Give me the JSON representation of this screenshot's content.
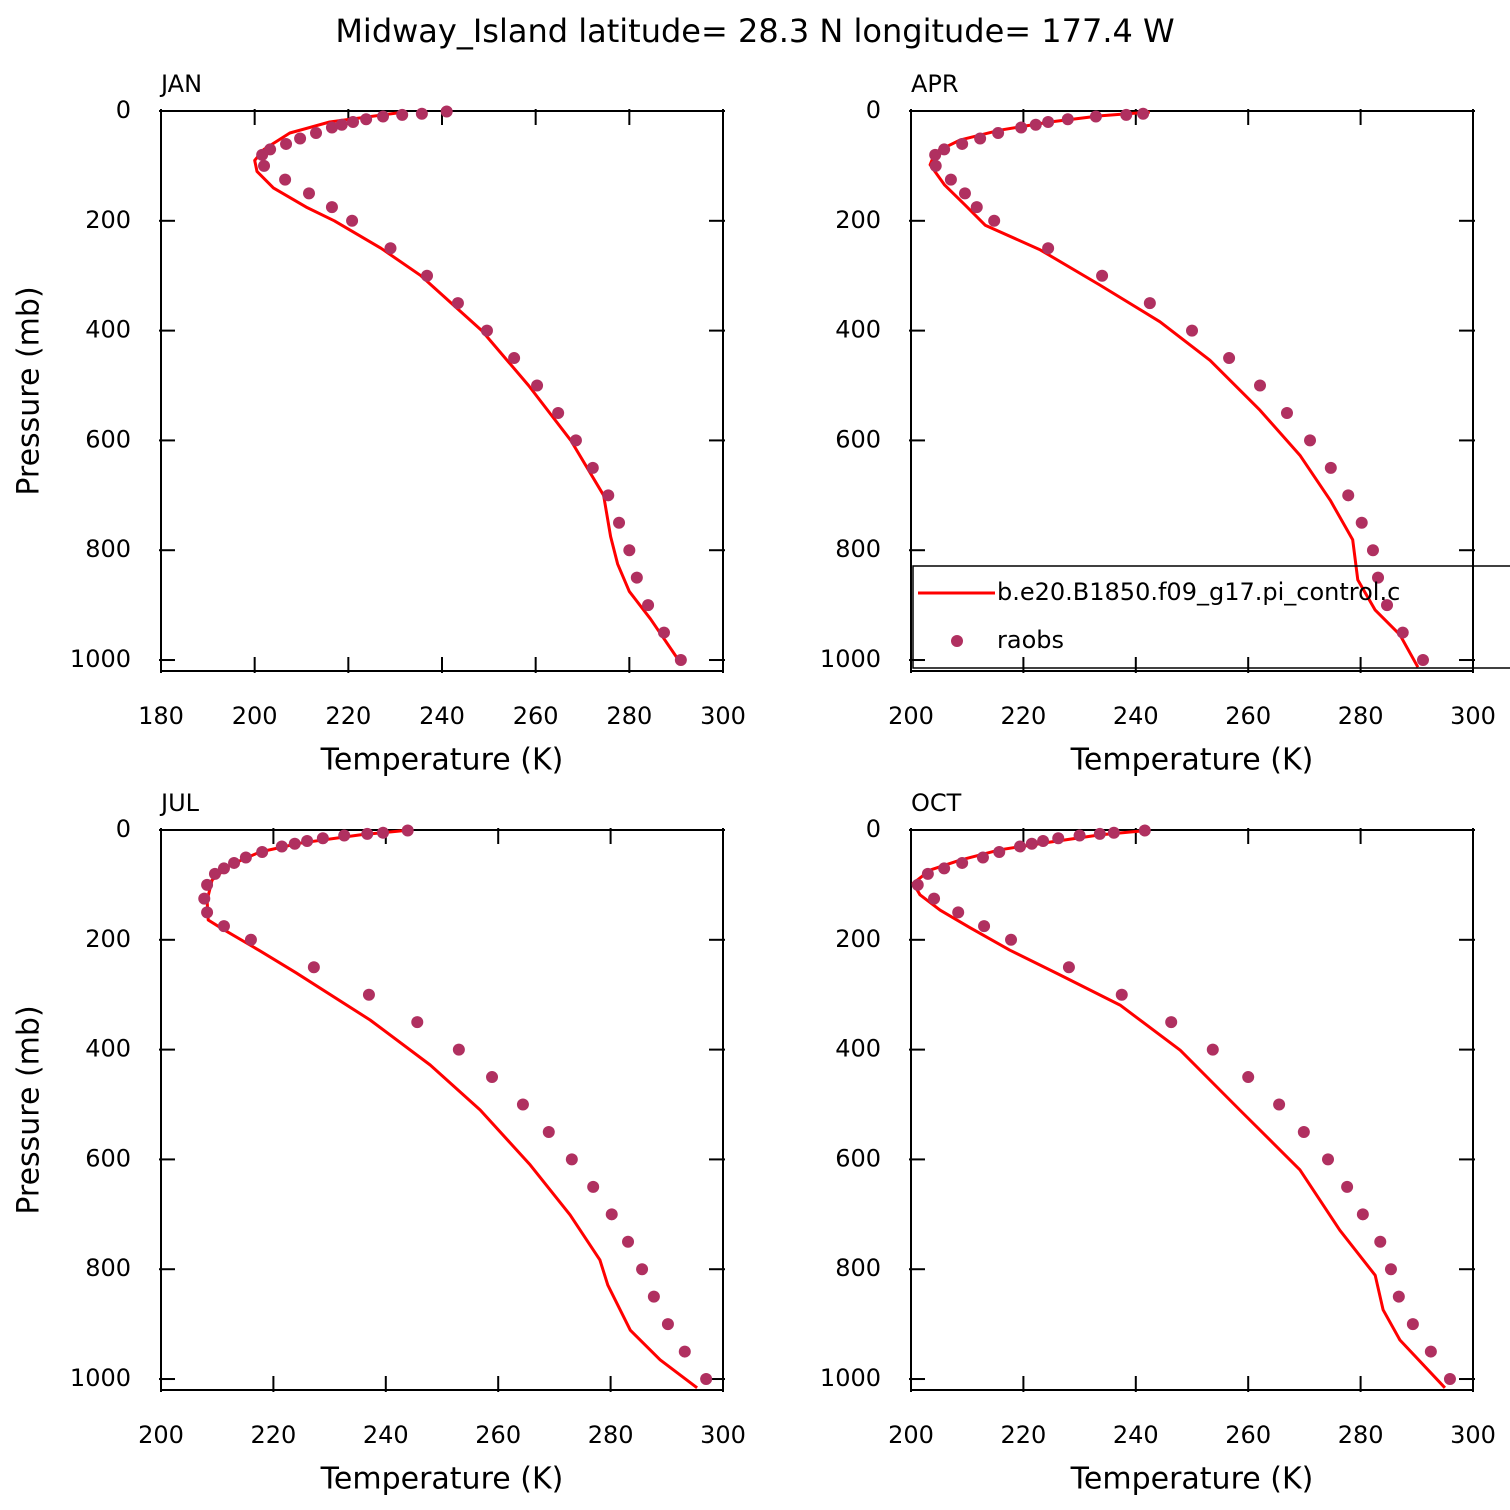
{
  "title": "Midway_Island  latitude= 28.3 N longitude= 177.4 W",
  "chart_data": [
    {
      "type": "line",
      "title": "JAN",
      "xlabel": "Temperature (K)",
      "ylabel": "Pressure (mb)",
      "xlim": [
        180,
        300
      ],
      "xticks": [
        180,
        200,
        220,
        240,
        260,
        280,
        300
      ],
      "ylim": [
        0,
        1020
      ],
      "yticks": [
        0,
        200,
        400,
        600,
        800,
        1000
      ],
      "y_inverted": true,
      "series": [
        {
          "style": "line",
          "color": "#ff0000",
          "x": [
            231,
            216,
            207.5,
            202,
            200,
            200.5,
            204,
            211,
            217,
            227,
            235.5,
            248.5,
            258.5,
            267.5,
            274.5,
            276,
            277.5,
            280,
            284.5,
            290.5
          ],
          "values": [
            3,
            20,
            40,
            70,
            90,
            110,
            140,
            175,
            200,
            250,
            300,
            400,
            500,
            600,
            700,
            775,
            825,
            875,
            925,
            1000
          ]
        },
        {
          "style": "points",
          "color": "#b03060",
          "x": [
            241,
            235.7,
            231.5,
            227.4,
            223.8,
            221,
            218.6,
            216.5,
            213.1,
            209.7,
            206.7,
            203.3,
            201.6,
            202,
            206.5,
            211.6,
            216.5,
            220.8,
            229,
            236.8,
            243.4,
            249.6,
            255.4,
            260.3,
            264.8,
            268.6,
            272.2,
            275.5,
            277.8,
            280,
            281.6,
            284,
            287.4,
            291
          ],
          "values": [
            1,
            5,
            7,
            10,
            15,
            20,
            25,
            30,
            40,
            50,
            60,
            70,
            80,
            100,
            125,
            150,
            175,
            200,
            250,
            300,
            350,
            400,
            450,
            500,
            550,
            600,
            650,
            700,
            750,
            800,
            850,
            900,
            950,
            1000
          ]
        }
      ]
    },
    {
      "type": "line",
      "title": "APR",
      "xlabel": "Temperature (K)",
      "xlim": [
        200,
        300
      ],
      "xticks": [
        200,
        220,
        240,
        260,
        280,
        300
      ],
      "ylim": [
        0,
        1020
      ],
      "yticks": [
        0,
        200,
        400,
        600,
        800,
        1000
      ],
      "y_inverted": true,
      "legend": "lower right",
      "series": [
        {
          "name": "b.e20.B1850.f09_g17.pi_control.c",
          "style": "line",
          "color": "#ff0000",
          "x": [
            242.5,
            233.6,
            224.7,
            215.8,
            208.7,
            204.3,
            203.4,
            206,
            209.6,
            213.2,
            223,
            233.6,
            244.3,
            253.2,
            262.1,
            269.2,
            274.6,
            278.6,
            279.5,
            282.6,
            287,
            290.2
          ],
          "values": [
            2,
            9,
            20,
            35,
            53,
            75,
            98,
            135,
            171,
            208,
            253,
            317,
            384,
            454,
            545,
            627,
            709,
            781,
            854,
            909,
            954,
            1013
          ]
        },
        {
          "name": "raobs",
          "style": "points",
          "color": "#b03060",
          "x": [
            241.3,
            238.3,
            232.9,
            227.9,
            224.4,
            222.2,
            219.6,
            215.5,
            212.3,
            209.1,
            205.9,
            204.3,
            204.4,
            207.1,
            209.6,
            211.7,
            214.8,
            224.4,
            234,
            242.5,
            250,
            256.6,
            262.1,
            266.9,
            271,
            274.7,
            277.8,
            280.2,
            282.2,
            283.1,
            284.7,
            287.5,
            291.1
          ],
          "values": [
            5,
            7,
            10,
            15,
            20,
            25,
            30,
            40,
            50,
            60,
            70,
            80,
            100,
            125,
            150,
            175,
            200,
            250,
            300,
            350,
            400,
            450,
            500,
            550,
            600,
            650,
            700,
            750,
            800,
            850,
            900,
            950,
            1000
          ]
        }
      ]
    },
    {
      "type": "line",
      "title": "JUL",
      "xlabel": "Temperature (K)",
      "ylabel": "Pressure (mb)",
      "xlim": [
        200,
        300
      ],
      "xticks": [
        200,
        220,
        240,
        260,
        280,
        300
      ],
      "ylim": [
        0,
        1020
      ],
      "yticks": [
        0,
        200,
        400,
        600,
        800,
        1000
      ],
      "y_inverted": true,
      "series": [
        {
          "style": "line",
          "color": "#ff0000",
          "x": [
            244.3,
            235.4,
            224.7,
            217.6,
            212.3,
            209.1,
            208.2,
            208.4,
            210.9,
            217.6,
            224,
            237.2,
            247.9,
            256.8,
            265.7,
            272.8,
            278.1,
            279.5,
            283.5,
            288.8,
            295.4
          ],
          "values": [
            0,
            9,
            24,
            40,
            64,
            91,
            128,
            164,
            180,
            220,
            260,
            346,
            428,
            510,
            610,
            701,
            783,
            829,
            911,
            965,
            1016
          ]
        },
        {
          "style": "points",
          "color": "#b03060",
          "x": [
            243.9,
            239.5,
            236.7,
            232.6,
            228.8,
            226,
            223.8,
            221.5,
            218,
            215.1,
            213,
            211.2,
            209.6,
            208.2,
            207.7,
            208.2,
            211.2,
            216,
            227.2,
            237,
            245.6,
            253,
            258.9,
            264.4,
            269,
            273.1,
            276.9,
            280.2,
            283.1,
            285.6,
            287.7,
            290.2,
            293.2,
            297
          ],
          "values": [
            1,
            5,
            7,
            10,
            15,
            20,
            25,
            30,
            40,
            50,
            60,
            70,
            80,
            100,
            125,
            150,
            175,
            200,
            250,
            300,
            350,
            400,
            450,
            500,
            550,
            600,
            650,
            700,
            750,
            800,
            850,
            900,
            950,
            1000
          ]
        }
      ]
    },
    {
      "type": "line",
      "title": "OCT",
      "xlabel": "Temperature (K)",
      "xlim": [
        200,
        300
      ],
      "xticks": [
        200,
        220,
        240,
        260,
        280,
        300
      ],
      "ylim": [
        0,
        1020
      ],
      "yticks": [
        0,
        200,
        400,
        600,
        800,
        1000
      ],
      "y_inverted": true,
      "series": [
        {
          "style": "line",
          "color": "#ff0000",
          "x": [
            240.7,
            233.6,
            224.7,
            215.8,
            208.7,
            203.4,
            200.4,
            201.6,
            205.2,
            210.5,
            217.6,
            226.5,
            237.2,
            247.9,
            258.5,
            269.2,
            276.3,
            282.6,
            284,
            287,
            295
          ],
          "values": [
            2,
            9,
            22,
            36,
            55,
            73,
            97,
            118,
            146,
            178,
            219,
            264,
            319,
            401,
            510,
            619,
            729,
            811,
            874,
            929,
            1016
          ]
        },
        {
          "style": "points",
          "color": "#b03060",
          "x": [
            241.6,
            236.1,
            233.6,
            230,
            226.2,
            223.5,
            221.5,
            219.4,
            215.7,
            212.8,
            209.1,
            205.9,
            203,
            201.2,
            204.1,
            208.4,
            213,
            217.8,
            228.1,
            237.5,
            246.3,
            253.7,
            260,
            265.5,
            269.9,
            274.2,
            277.6,
            280.4,
            283.5,
            285.4,
            286.8,
            289.3,
            292.5,
            295.9
          ],
          "values": [
            1,
            5,
            7,
            10,
            15,
            20,
            25,
            30,
            40,
            50,
            60,
            70,
            80,
            100,
            125,
            150,
            175,
            200,
            250,
            300,
            350,
            400,
            450,
            500,
            550,
            600,
            650,
            700,
            750,
            800,
            850,
            900,
            950,
            1000
          ]
        }
      ]
    }
  ]
}
